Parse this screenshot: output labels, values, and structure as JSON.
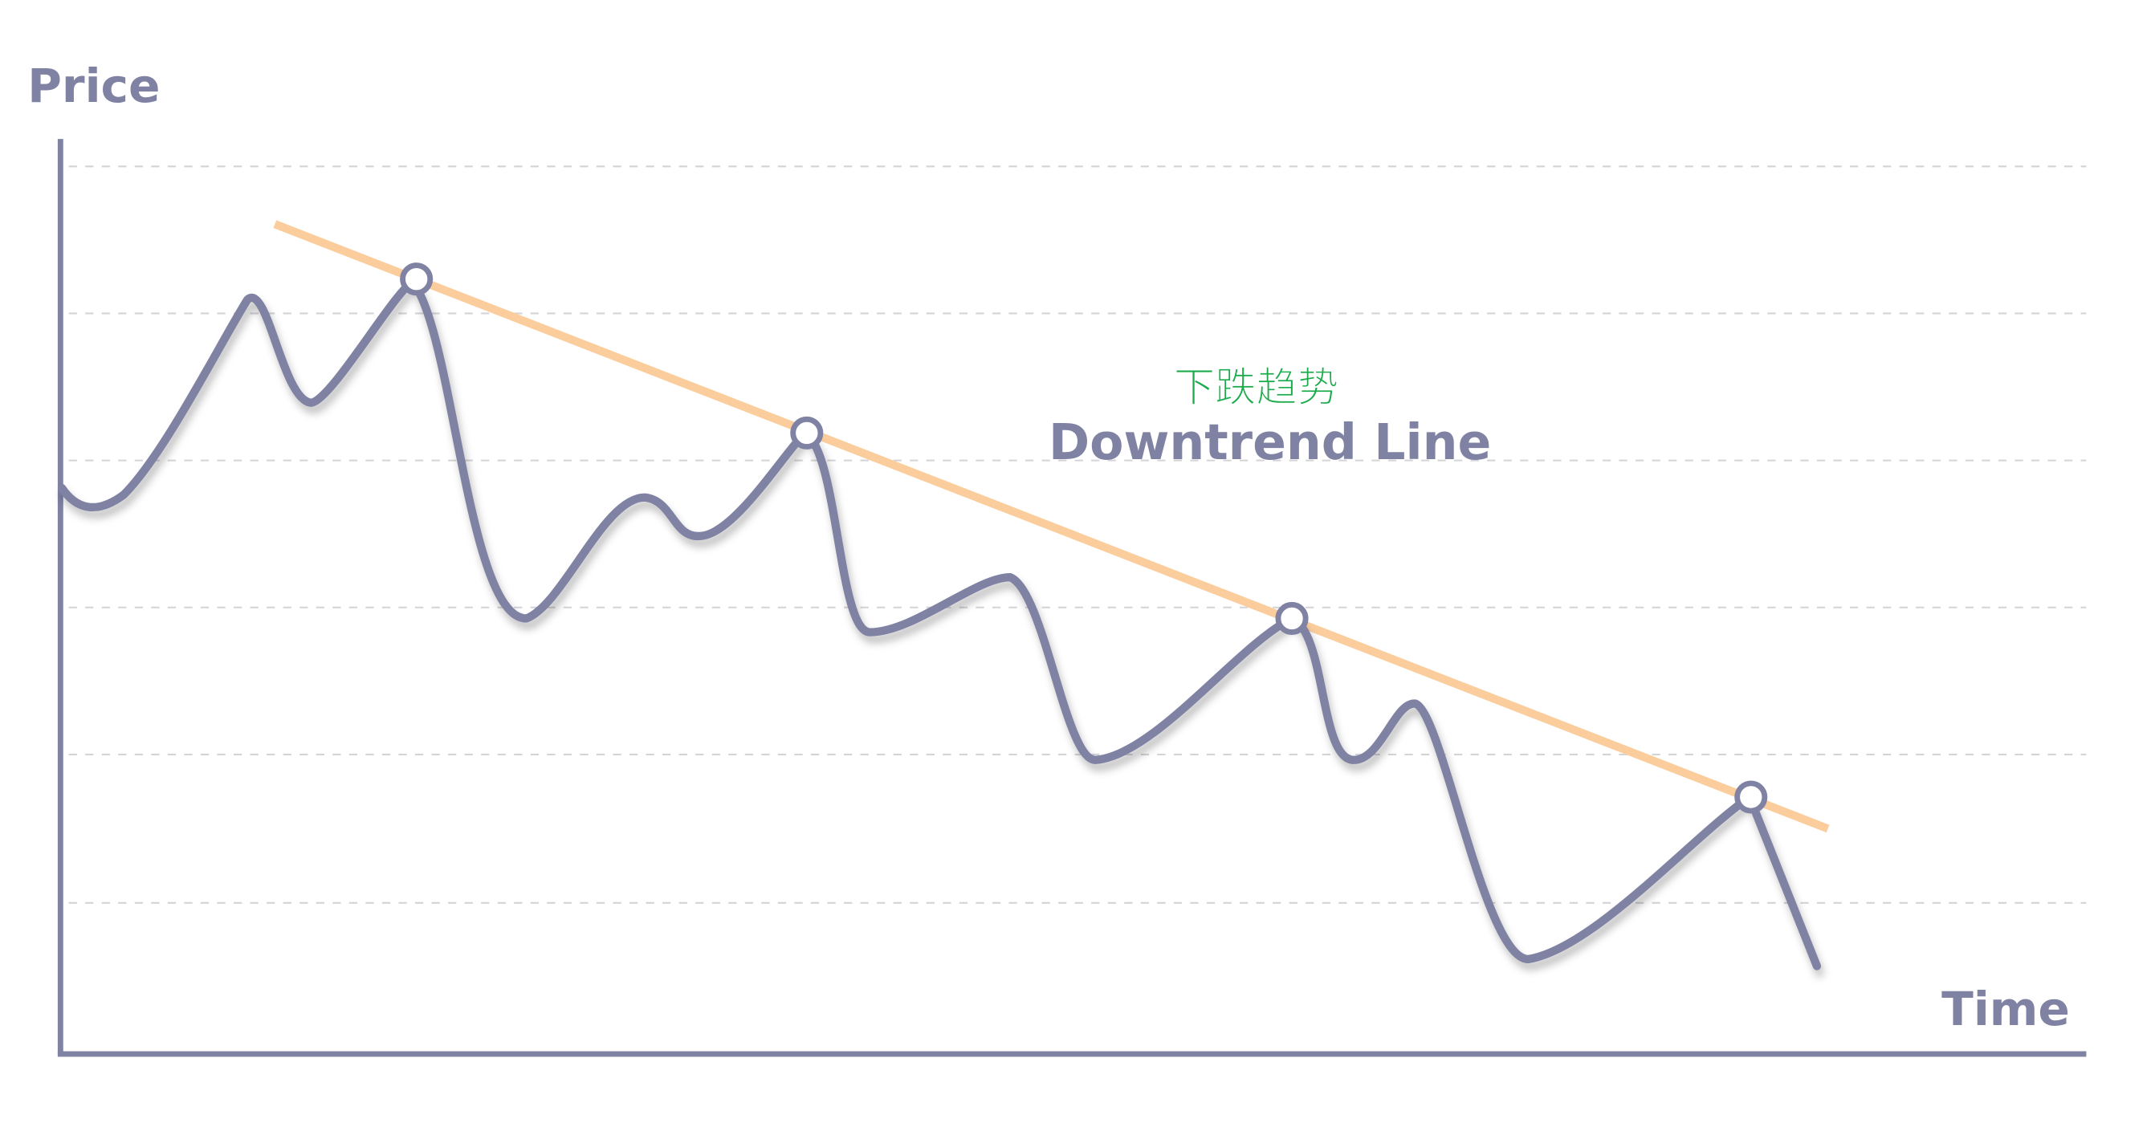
{
  "y_label": "Price",
  "x_label": "Time",
  "annotation": {
    "chinese": "下跌趋势",
    "english": "Downtrend Line"
  }
}
